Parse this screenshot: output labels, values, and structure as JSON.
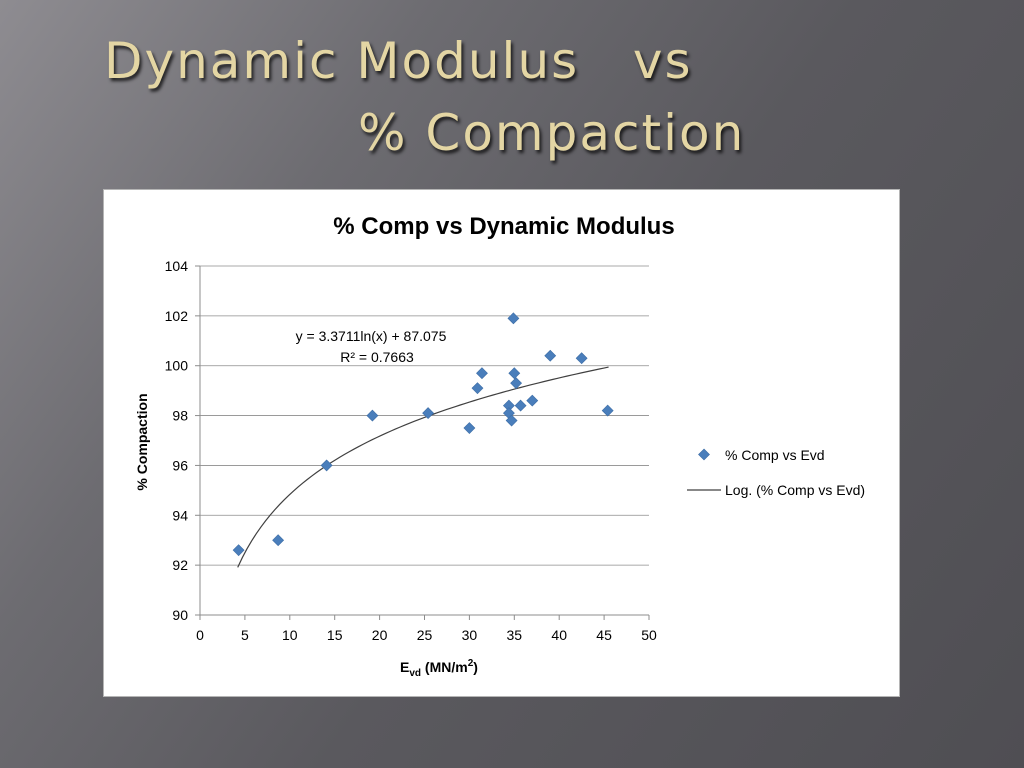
{
  "slide": {
    "title_line1": "Dynamic Modulus   vs",
    "title_line2": "% Compaction"
  },
  "chart_data": {
    "type": "scatter",
    "title": "% Comp vs Dynamic Modulus",
    "xlabel_main": "E",
    "xlabel_sub": "vd",
    "xlabel_rest": " (MN/m",
    "xlabel_sup": "2",
    "xlabel_end": ")",
    "ylabel": "% Compaction",
    "xlim": [
      0,
      50
    ],
    "ylim": [
      90,
      104
    ],
    "x_ticks": [
      0,
      5,
      10,
      15,
      20,
      25,
      30,
      35,
      40,
      45,
      50
    ],
    "y_ticks": [
      90,
      92,
      94,
      96,
      98,
      100,
      102,
      104
    ],
    "grid": "horizontal",
    "legend_position": "right",
    "series": [
      {
        "name": "% Comp vs Evd",
        "marker": "diamond",
        "color": "#4a7ebb",
        "points": [
          [
            4.3,
            92.6
          ],
          [
            8.7,
            93.0
          ],
          [
            14.1,
            96.0
          ],
          [
            19.2,
            98.0
          ],
          [
            25.4,
            98.1
          ],
          [
            30.0,
            97.5
          ],
          [
            30.9,
            99.1
          ],
          [
            31.4,
            99.7
          ],
          [
            34.4,
            98.4
          ],
          [
            34.4,
            98.1
          ],
          [
            34.7,
            97.8
          ],
          [
            34.9,
            101.9
          ],
          [
            35.0,
            99.7
          ],
          [
            35.2,
            99.3
          ],
          [
            35.7,
            98.4
          ],
          [
            37.0,
            98.6
          ],
          [
            39.0,
            100.4
          ],
          [
            42.5,
            100.3
          ],
          [
            45.4,
            98.2
          ]
        ]
      }
    ],
    "trendline": {
      "name": "Log. (% Comp vs Evd)",
      "type": "log",
      "a": 3.3711,
      "b": 87.075,
      "x_range": [
        4.2,
        45.5
      ],
      "color": "#404040",
      "equation": "y = 3.3711ln(x) + 87.075",
      "r_squared": "R² = 0.7663"
    }
  }
}
